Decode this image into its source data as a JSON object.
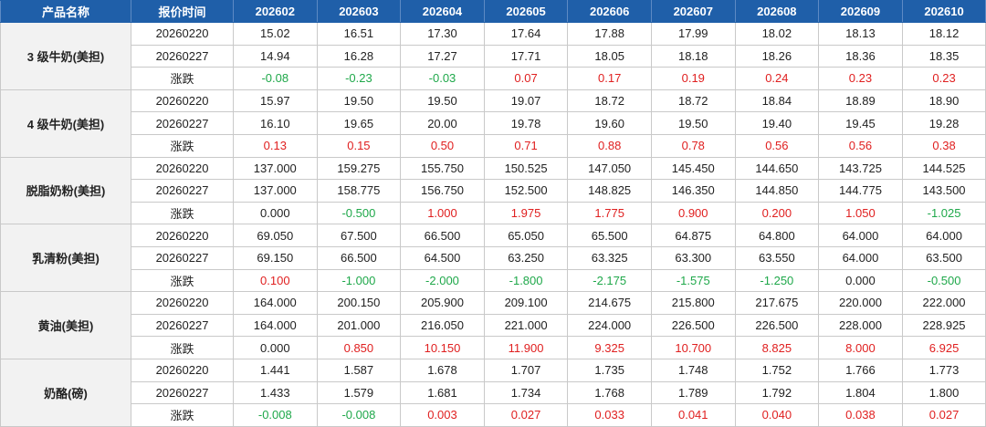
{
  "header": [
    "产品名称",
    "报价时间",
    "202602",
    "202603",
    "202604",
    "202605",
    "202606",
    "202607",
    "202608",
    "202609",
    "202610"
  ],
  "groups": [
    {
      "product": "3 级牛奶(美担)",
      "rows": [
        {
          "label": "20260220",
          "values": [
            "15.02",
            "16.51",
            "17.30",
            "17.64",
            "17.88",
            "17.99",
            "18.02",
            "18.13",
            "18.12"
          ]
        },
        {
          "label": "20260227",
          "values": [
            "14.94",
            "16.28",
            "17.27",
            "17.71",
            "18.05",
            "18.18",
            "18.26",
            "18.36",
            "18.35"
          ]
        },
        {
          "label": "涨跌",
          "values": [
            "-0.08",
            "-0.23",
            "-0.03",
            "0.07",
            "0.17",
            "0.19",
            "0.24",
            "0.23",
            "0.23"
          ]
        }
      ]
    },
    {
      "product": "4 级牛奶(美担)",
      "rows": [
        {
          "label": "20260220",
          "values": [
            "15.97",
            "19.50",
            "19.50",
            "19.07",
            "18.72",
            "18.72",
            "18.84",
            "18.89",
            "18.90"
          ]
        },
        {
          "label": "20260227",
          "values": [
            "16.10",
            "19.65",
            "20.00",
            "19.78",
            "19.60",
            "19.50",
            "19.40",
            "19.45",
            "19.28"
          ]
        },
        {
          "label": "涨跌",
          "values": [
            "0.13",
            "0.15",
            "0.50",
            "0.71",
            "0.88",
            "0.78",
            "0.56",
            "0.56",
            "0.38"
          ]
        }
      ]
    },
    {
      "product": "脱脂奶粉(美担)",
      "rows": [
        {
          "label": "20260220",
          "values": [
            "137.000",
            "159.275",
            "155.750",
            "150.525",
            "147.050",
            "145.450",
            "144.650",
            "143.725",
            "144.525"
          ]
        },
        {
          "label": "20260227",
          "values": [
            "137.000",
            "158.775",
            "156.750",
            "152.500",
            "148.825",
            "146.350",
            "144.850",
            "144.775",
            "143.500"
          ]
        },
        {
          "label": "涨跌",
          "values": [
            "0.000",
            "-0.500",
            "1.000",
            "1.975",
            "1.775",
            "0.900",
            "0.200",
            "1.050",
            "-1.025"
          ]
        }
      ]
    },
    {
      "product": "乳清粉(美担)",
      "rows": [
        {
          "label": "20260220",
          "values": [
            "69.050",
            "67.500",
            "66.500",
            "65.050",
            "65.500",
            "64.875",
            "64.800",
            "64.000",
            "64.000"
          ]
        },
        {
          "label": "20260227",
          "values": [
            "69.150",
            "66.500",
            "64.500",
            "63.250",
            "63.325",
            "63.300",
            "63.550",
            "64.000",
            "63.500"
          ]
        },
        {
          "label": "涨跌",
          "values": [
            "0.100",
            "-1.000",
            "-2.000",
            "-1.800",
            "-2.175",
            "-1.575",
            "-1.250",
            "0.000",
            "-0.500"
          ]
        }
      ]
    },
    {
      "product": "黄油(美担)",
      "rows": [
        {
          "label": "20260220",
          "values": [
            "164.000",
            "200.150",
            "205.900",
            "209.100",
            "214.675",
            "215.800",
            "217.675",
            "220.000",
            "222.000"
          ]
        },
        {
          "label": "20260227",
          "values": [
            "164.000",
            "201.000",
            "216.050",
            "221.000",
            "224.000",
            "226.500",
            "226.500",
            "228.000",
            "228.925"
          ]
        },
        {
          "label": "涨跌",
          "values": [
            "0.000",
            "0.850",
            "10.150",
            "11.900",
            "9.325",
            "10.700",
            "8.825",
            "8.000",
            "6.925"
          ]
        }
      ]
    },
    {
      "product": "奶酪(磅)",
      "rows": [
        {
          "label": "20260220",
          "values": [
            "1.441",
            "1.587",
            "1.678",
            "1.707",
            "1.735",
            "1.748",
            "1.752",
            "1.766",
            "1.773"
          ]
        },
        {
          "label": "20260227",
          "values": [
            "1.433",
            "1.579",
            "1.681",
            "1.734",
            "1.768",
            "1.789",
            "1.792",
            "1.804",
            "1.800"
          ]
        },
        {
          "label": "涨跌",
          "values": [
            "-0.008",
            "-0.008",
            "0.003",
            "0.027",
            "0.033",
            "0.041",
            "0.040",
            "0.038",
            "0.027"
          ]
        }
      ]
    }
  ]
}
